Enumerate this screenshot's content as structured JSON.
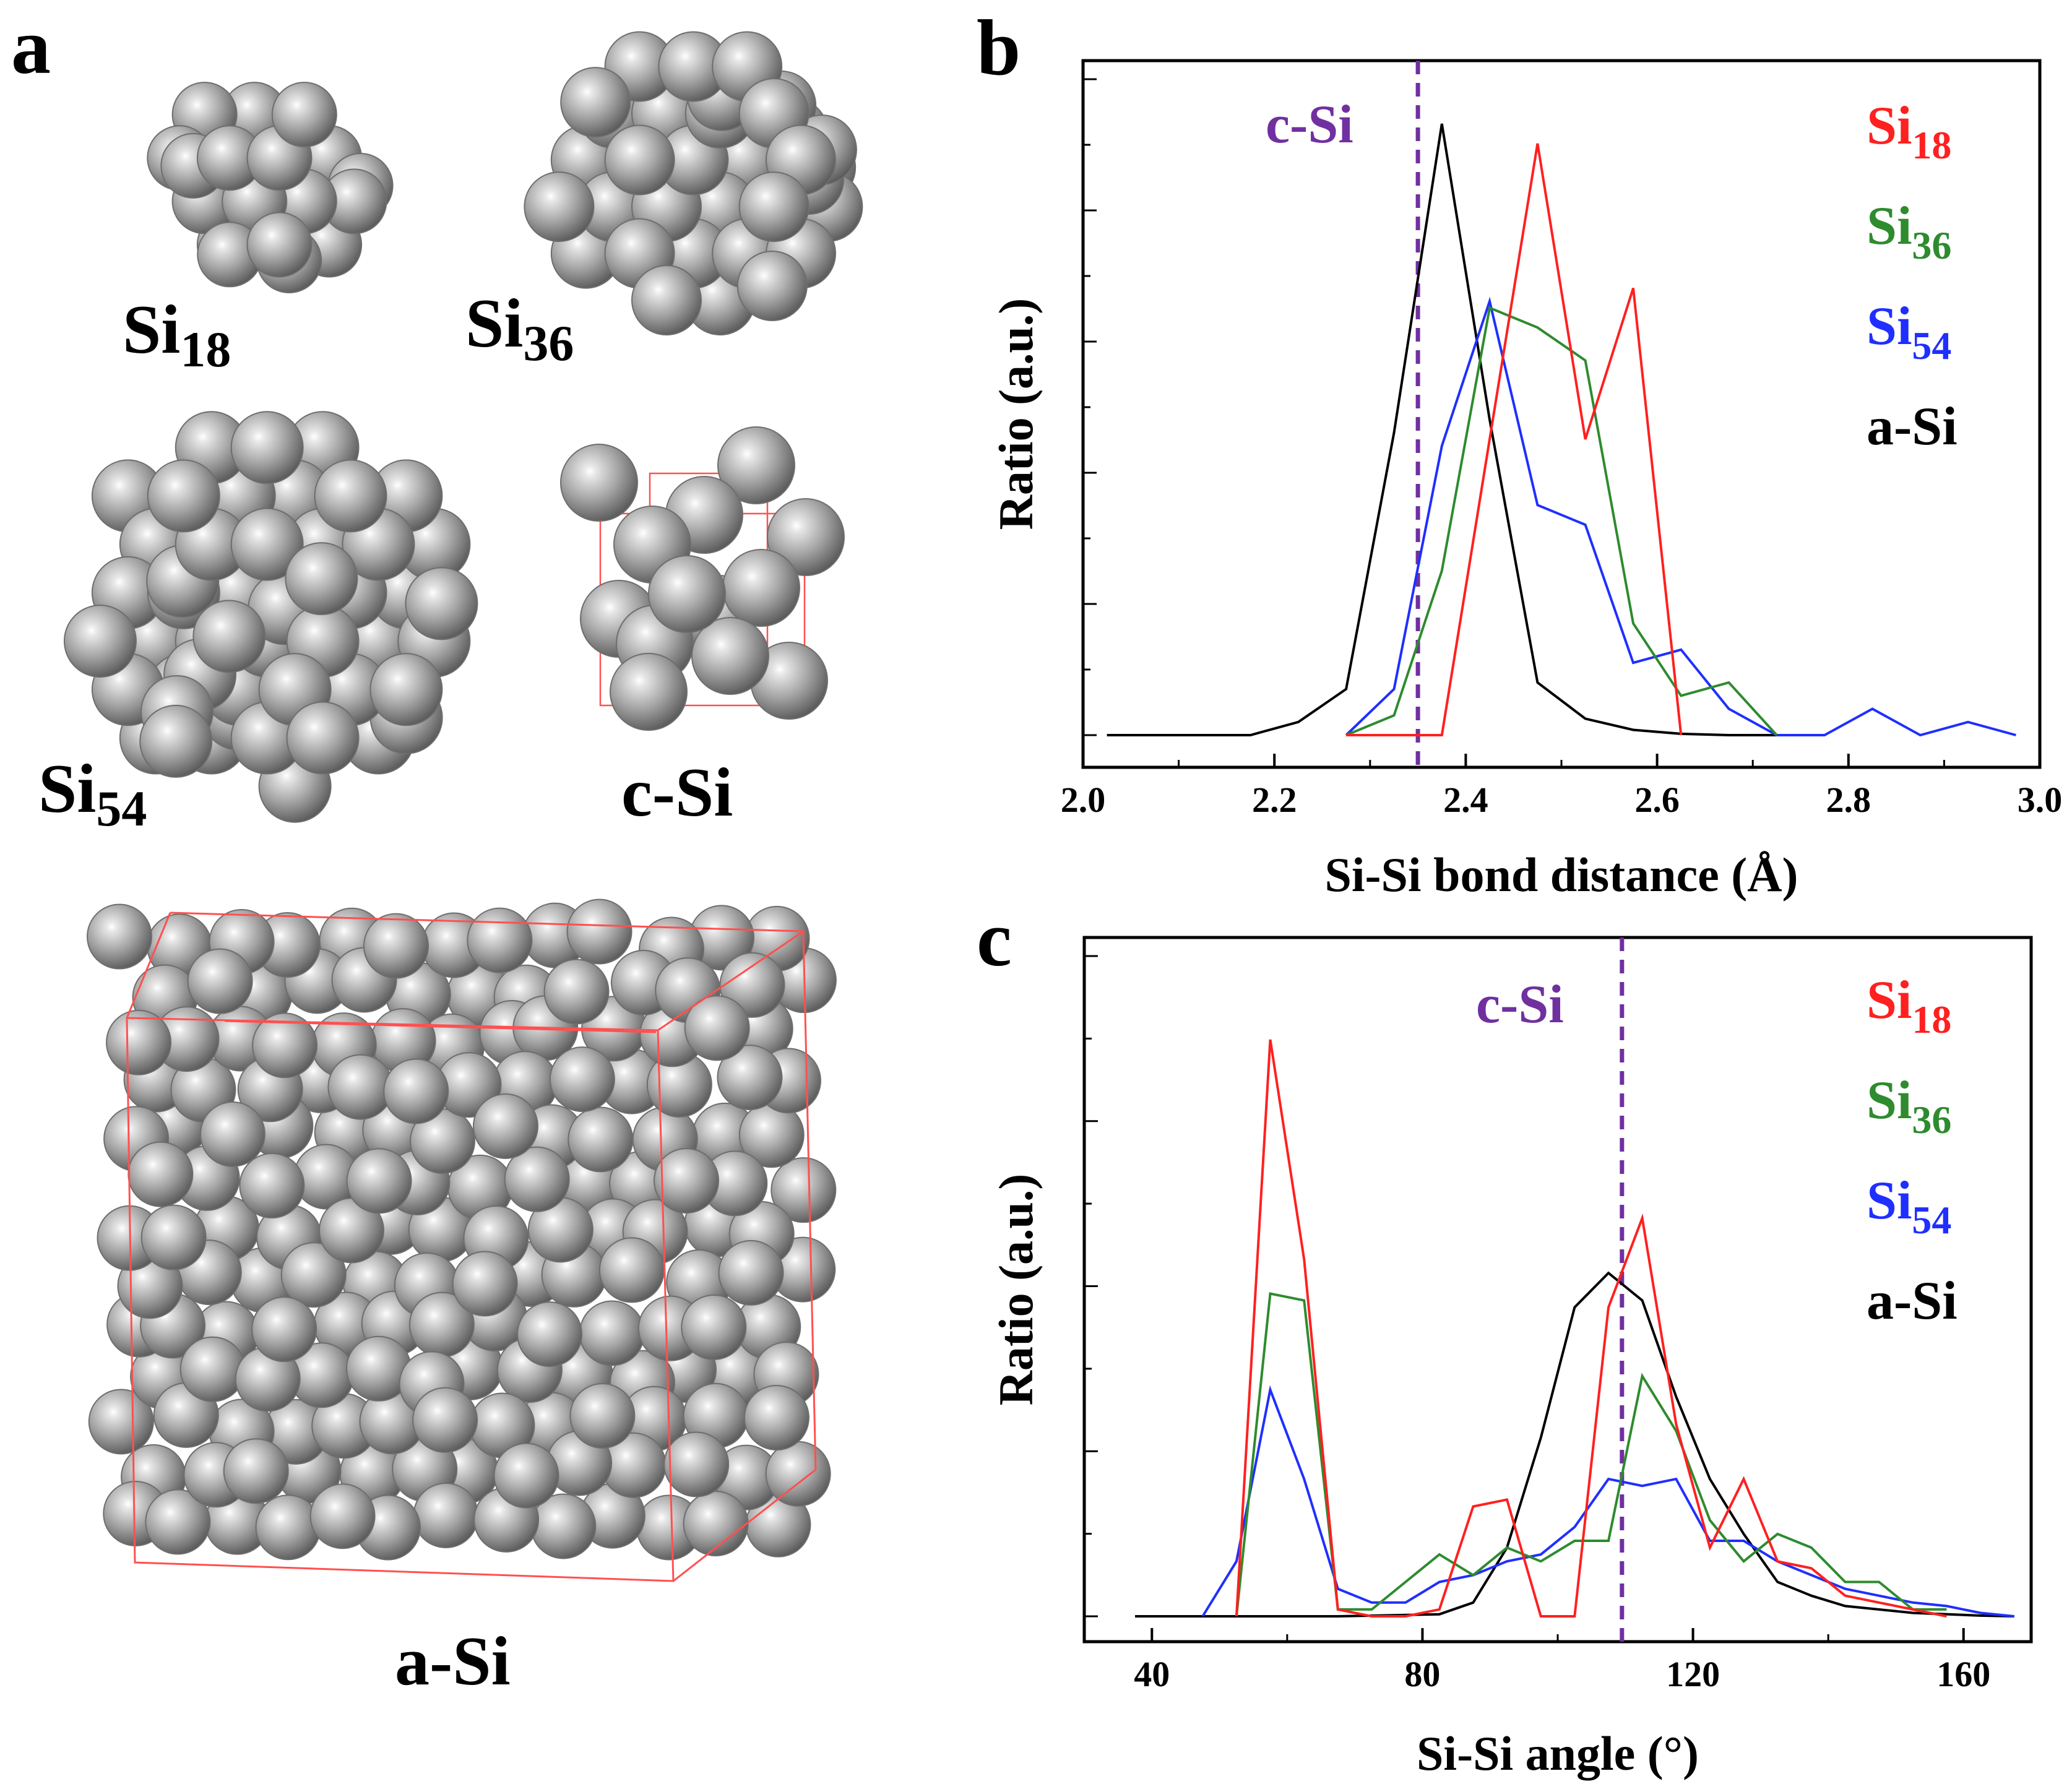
{
  "panels": {
    "a": {
      "letter": "a",
      "structures": [
        {
          "id": "si18",
          "base": "Si",
          "sub": "18"
        },
        {
          "id": "si36",
          "base": "Si",
          "sub": "36"
        },
        {
          "id": "si54",
          "base": "Si",
          "sub": "54"
        },
        {
          "id": "csi",
          "base": "c-Si",
          "sub": ""
        },
        {
          "id": "asi",
          "base": "a-Si",
          "sub": ""
        }
      ]
    },
    "b": {
      "letter": "b"
    },
    "c": {
      "letter": "c"
    }
  },
  "colors": {
    "Si18": "#ff2020",
    "Si36": "#2e8b2e",
    "Si54": "#1f2fff",
    "aSi": "#000000",
    "cSi": "#7030a0",
    "sphere": "#9a9a9a",
    "box": "#ff5050"
  },
  "chart_data": [
    {
      "id": "b",
      "type": "line",
      "title": "",
      "xlabel": "Si-Si bond distance (Å)",
      "ylabel": "Ratio (a.u.)",
      "xlim": [
        2.0,
        3.0
      ],
      "ylim": [
        0,
        1.05
      ],
      "xticks": [
        2.0,
        2.2,
        2.4,
        2.6,
        2.8,
        3.0
      ],
      "xtick_labels": [
        "2.0",
        "2.2",
        "2.4",
        "2.6",
        "2.8",
        "3.0"
      ],
      "reference_line": {
        "label": "c-Si",
        "x": 2.35
      },
      "legend": [
        {
          "base": "Si",
          "sub": "18",
          "key": "Si18"
        },
        {
          "base": "Si",
          "sub": "36",
          "key": "Si36"
        },
        {
          "base": "Si",
          "sub": "54",
          "key": "Si54"
        },
        {
          "base": "a-Si",
          "sub": "",
          "key": "aSi"
        }
      ],
      "series": [
        {
          "name": "a-Si",
          "key": "aSi",
          "x": [
            2.025,
            2.175,
            2.225,
            2.275,
            2.325,
            2.375,
            2.425,
            2.475,
            2.525,
            2.575,
            2.625,
            2.675,
            2.725
          ],
          "y": [
            0,
            0,
            0.02,
            0.07,
            0.46,
            0.93,
            0.48,
            0.08,
            0.025,
            0.008,
            0.002,
            0,
            0
          ]
        },
        {
          "name": "Si18",
          "key": "Si18",
          "x": [
            2.275,
            2.325,
            2.375,
            2.425,
            2.475,
            2.525,
            2.575,
            2.625
          ],
          "y": [
            0,
            0,
            0,
            0.45,
            0.9,
            0.45,
            0.68,
            0
          ]
        },
        {
          "name": "Si36",
          "key": "Si36",
          "x": [
            2.275,
            2.325,
            2.375,
            2.425,
            2.475,
            2.525,
            2.575,
            2.625,
            2.675,
            2.725
          ],
          "y": [
            0,
            0.03,
            0.25,
            0.65,
            0.62,
            0.57,
            0.17,
            0.06,
            0.08,
            0
          ]
        },
        {
          "name": "Si54",
          "key": "Si54",
          "x": [
            2.275,
            2.325,
            2.375,
            2.425,
            2.475,
            2.525,
            2.575,
            2.625,
            2.675,
            2.725,
            2.775,
            2.825,
            2.875,
            2.925,
            2.975
          ],
          "y": [
            0,
            0.07,
            0.44,
            0.66,
            0.35,
            0.32,
            0.11,
            0.13,
            0.04,
            0,
            0,
            0.04,
            0,
            0.02,
            0
          ]
        }
      ]
    },
    {
      "id": "c",
      "type": "line",
      "title": "",
      "xlabel": "Si-Si angle (°)",
      "ylabel": "Ratio (a.u.)",
      "xlim": [
        30,
        170
      ],
      "ylim": [
        0,
        1.0
      ],
      "xticks": [
        40,
        80,
        120,
        160
      ],
      "xtick_labels": [
        "40",
        "80",
        "120",
        "160"
      ],
      "reference_line": {
        "label": "c-Si",
        "x": 109.5
      },
      "legend": [
        {
          "base": "Si",
          "sub": "18",
          "key": "Si18"
        },
        {
          "base": "Si",
          "sub": "36",
          "key": "Si36"
        },
        {
          "base": "Si",
          "sub": "54",
          "key": "Si54"
        },
        {
          "base": "a-Si",
          "sub": "",
          "key": "aSi"
        }
      ],
      "series": [
        {
          "name": "a-Si",
          "key": "aSi",
          "x": [
            37.5,
            52.5,
            67.5,
            82.5,
            87.5,
            92.5,
            97.5,
            102.5,
            107.5,
            112.5,
            117.5,
            122.5,
            127.5,
            132.5,
            137.5,
            142.5,
            152.5,
            162.5,
            167.5
          ],
          "y": [
            0,
            0,
            0,
            0.003,
            0.02,
            0.1,
            0.26,
            0.45,
            0.5,
            0.46,
            0.32,
            0.2,
            0.12,
            0.05,
            0.03,
            0.015,
            0.005,
            0.001,
            0
          ]
        },
        {
          "name": "Si18",
          "key": "Si18",
          "x": [
            52.5,
            57.5,
            62.5,
            67.5,
            72.5,
            77.5,
            82.5,
            87.5,
            92.5,
            97.5,
            102.5,
            107.5,
            112.5,
            117.5,
            122.5,
            127.5,
            132.5,
            137.5,
            142.5,
            147.5,
            152.5,
            157.5
          ],
          "y": [
            0,
            0.84,
            0.52,
            0.01,
            0,
            0,
            0.01,
            0.16,
            0.17,
            0,
            0,
            0.45,
            0.58,
            0.28,
            0.1,
            0.2,
            0.08,
            0.07,
            0.03,
            0.02,
            0.01,
            0
          ]
        },
        {
          "name": "Si36",
          "key": "Si36",
          "x": [
            52.5,
            57.5,
            62.5,
            67.5,
            72.5,
            77.5,
            82.5,
            87.5,
            92.5,
            97.5,
            102.5,
            107.5,
            112.5,
            117.5,
            122.5,
            127.5,
            132.5,
            137.5,
            142.5,
            147.5,
            152.5,
            157.5
          ],
          "y": [
            0,
            0.47,
            0.46,
            0.01,
            0.01,
            0.05,
            0.09,
            0.06,
            0.1,
            0.08,
            0.11,
            0.11,
            0.35,
            0.27,
            0.14,
            0.08,
            0.12,
            0.1,
            0.05,
            0.05,
            0.01,
            0.01
          ]
        },
        {
          "name": "Si54",
          "key": "Si54",
          "x": [
            47.5,
            52.5,
            57.5,
            62.5,
            67.5,
            72.5,
            77.5,
            82.5,
            87.5,
            92.5,
            97.5,
            102.5,
            107.5,
            112.5,
            117.5,
            122.5,
            127.5,
            132.5,
            137.5,
            142.5,
            147.5,
            152.5,
            157.5,
            162.5,
            167.5
          ],
          "y": [
            0,
            0.08,
            0.33,
            0.2,
            0.04,
            0.02,
            0.02,
            0.05,
            0.06,
            0.08,
            0.09,
            0.13,
            0.2,
            0.19,
            0.2,
            0.11,
            0.11,
            0.08,
            0.06,
            0.04,
            0.03,
            0.02,
            0.015,
            0.005,
            0
          ]
        }
      ]
    }
  ]
}
